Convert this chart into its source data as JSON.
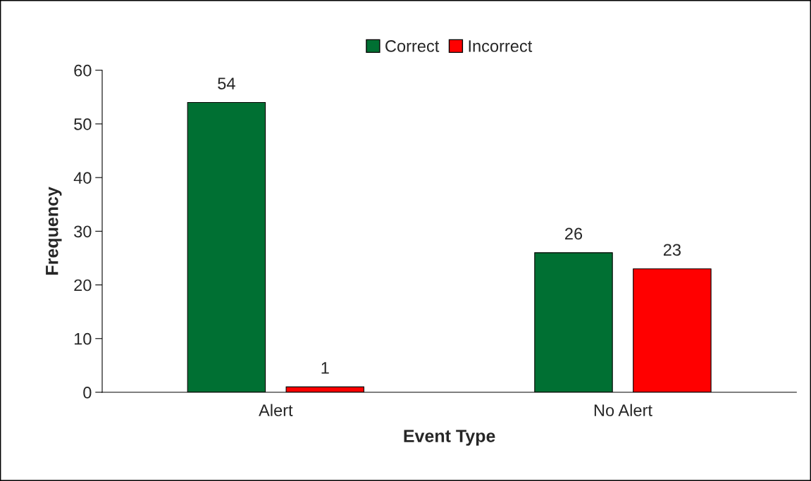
{
  "chart_data": {
    "type": "bar",
    "xlabel": "Event Type",
    "ylabel": "Frequency",
    "categories": [
      "Alert",
      "No Alert"
    ],
    "series": [
      {
        "name": "Correct",
        "color": "#007033",
        "values": [
          54,
          26
        ]
      },
      {
        "name": "Incorrect",
        "color": "#ff0000",
        "values": [
          1,
          23
        ]
      }
    ],
    "ylim": [
      0,
      60
    ],
    "yticks": [
      0,
      10,
      20,
      30,
      40,
      50,
      60
    ],
    "grid": false,
    "legend": "top",
    "data_labels": true
  }
}
